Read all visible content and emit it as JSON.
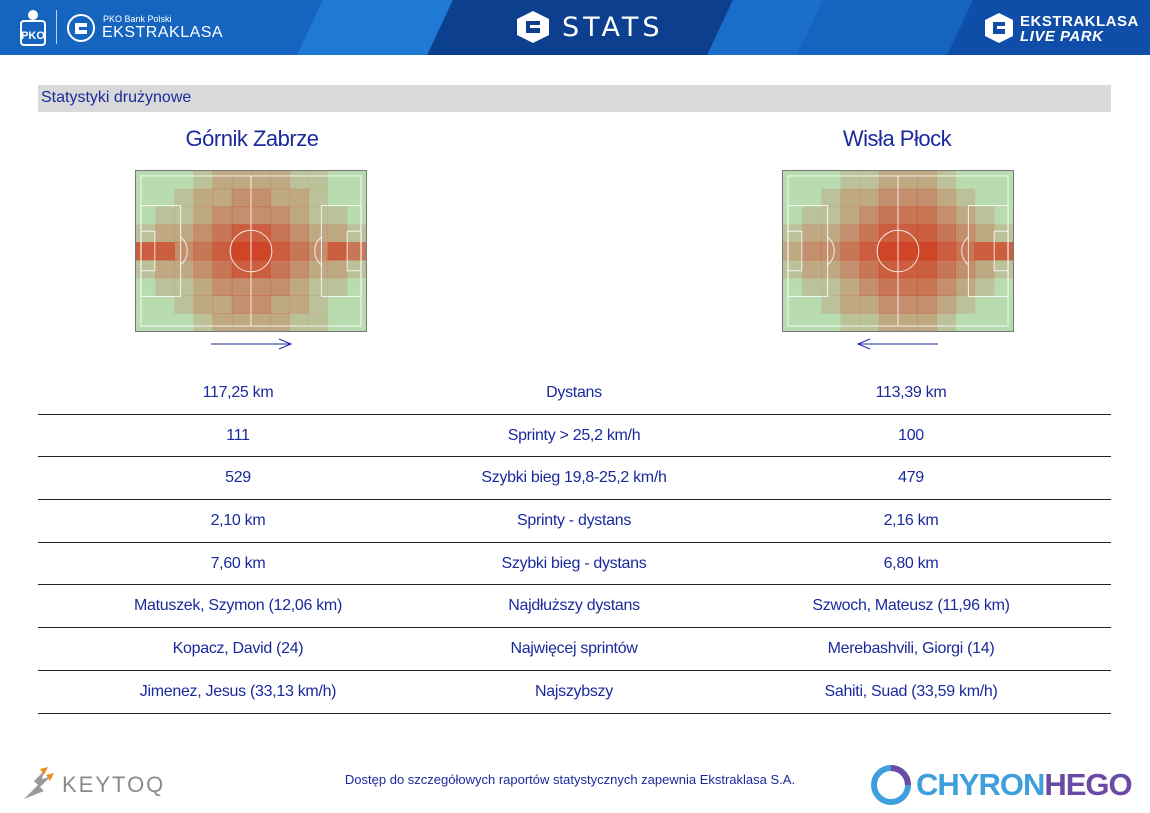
{
  "header": {
    "pko_small": "PKO Bank Polski",
    "pko_big": "EKSTRAKLASA",
    "title": "STATS",
    "live_line1": "EKSTRAKLASA",
    "live_line2": "LIVE PARK"
  },
  "section": {
    "title": "Statystyki drużynowe"
  },
  "teams": {
    "home": "Górnik Zabrze",
    "away": "Wisła Płock"
  },
  "stats": {
    "rows": [
      {
        "home": "117,25 km",
        "label": "Dystans",
        "away": "113,39 km"
      },
      {
        "home": "111",
        "label": "Sprinty > 25,2 km/h",
        "away": "100"
      },
      {
        "home": "529",
        "label": "Szybki bieg 19,8-25,2 km/h",
        "away": "479"
      },
      {
        "home": "2,10 km",
        "label": "Sprinty - dystans",
        "away": "2,16 km"
      },
      {
        "home": "7,60 km",
        "label": "Szybki bieg - dystans",
        "away": "6,80 km"
      },
      {
        "home": "Matuszek, Szymon (12,06 km)",
        "label": "Najdłuższy dystans",
        "away": "Szwoch, Mateusz (11,96 km)"
      },
      {
        "home": "Kopacz, David (24)",
        "label": "Najwięcej sprintów",
        "away": "Merebashvili, Giorgi (14)"
      },
      {
        "home": "Jimenez, Jesus (33,13 km/h)",
        "label": "Najszybszy",
        "away": "Sahiti, Suad (33,59 km/h)"
      }
    ]
  },
  "footer": {
    "note": "Dostęp do szczegółowych raportów statystycznych zapewnia Ekstraklasa S.A.",
    "keytoq": "KEYTOQ",
    "chyron_part1": "CHYRON",
    "chyron_part2": "HEGO"
  },
  "colors": {
    "header_blue": "#1565c0",
    "text_blue": "#1a2a9c",
    "pitch_green": "#b8dbb0",
    "heat_red": "#d2341a"
  },
  "heatmaps": {
    "home": [
      [
        0,
        0,
        0,
        1,
        2,
        2,
        2,
        2,
        1,
        1,
        0,
        0
      ],
      [
        0,
        0,
        1,
        2,
        2,
        3,
        3,
        2,
        2,
        1,
        0,
        0
      ],
      [
        0,
        1,
        1,
        2,
        3,
        3,
        3,
        3,
        2,
        1,
        1,
        0
      ],
      [
        1,
        2,
        2,
        3,
        4,
        5,
        5,
        4,
        3,
        2,
        2,
        1
      ],
      [
        5,
        5,
        3,
        4,
        5,
        6,
        6,
        5,
        4,
        3,
        5,
        4
      ],
      [
        1,
        2,
        2,
        3,
        4,
        5,
        5,
        4,
        3,
        2,
        2,
        1
      ],
      [
        0,
        1,
        1,
        2,
        3,
        3,
        3,
        3,
        2,
        1,
        1,
        0
      ],
      [
        0,
        0,
        1,
        2,
        2,
        3,
        3,
        2,
        2,
        1,
        0,
        0
      ],
      [
        0,
        0,
        0,
        1,
        2,
        2,
        2,
        2,
        1,
        1,
        0,
        0
      ]
    ],
    "away": [
      [
        0,
        0,
        0,
        1,
        1,
        2,
        2,
        2,
        1,
        0,
        0,
        0
      ],
      [
        0,
        0,
        1,
        2,
        2,
        3,
        3,
        3,
        2,
        1,
        0,
        0
      ],
      [
        0,
        1,
        1,
        2,
        3,
        4,
        4,
        4,
        3,
        2,
        1,
        0
      ],
      [
        1,
        2,
        2,
        3,
        4,
        5,
        5,
        5,
        4,
        3,
        2,
        1
      ],
      [
        2,
        3,
        3,
        4,
        5,
        6,
        6,
        6,
        5,
        4,
        5,
        5
      ],
      [
        1,
        2,
        2,
        3,
        4,
        5,
        5,
        5,
        4,
        3,
        2,
        1
      ],
      [
        0,
        1,
        1,
        2,
        3,
        4,
        4,
        4,
        3,
        2,
        1,
        0
      ],
      [
        0,
        0,
        1,
        2,
        2,
        3,
        3,
        3,
        2,
        1,
        0,
        0
      ],
      [
        0,
        0,
        0,
        1,
        1,
        2,
        2,
        2,
        1,
        0,
        0,
        0
      ]
    ]
  }
}
